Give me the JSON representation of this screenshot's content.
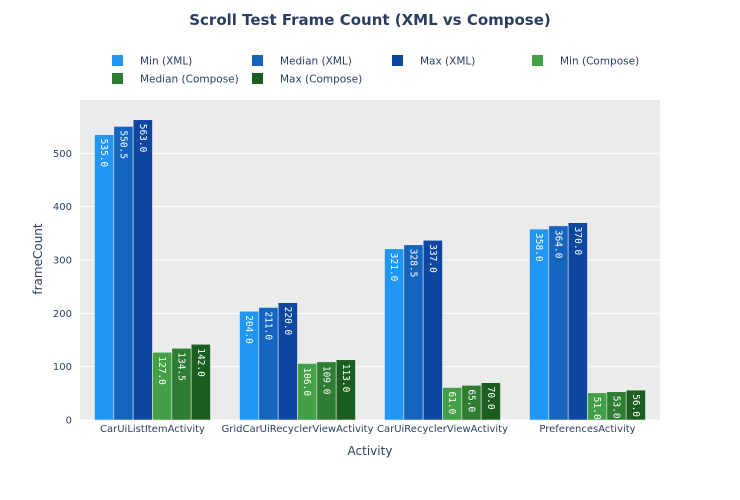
{
  "chart_data": {
    "type": "bar",
    "title": "Scroll Test Frame Count (XML vs Compose)",
    "xlabel": "Activity",
    "ylabel": "frameCount",
    "ylim": [
      0,
      600
    ],
    "yticks": [
      0,
      100,
      200,
      300,
      400,
      500
    ],
    "grid": true,
    "legend_position": "top",
    "categories": [
      "CarUiListItemActivity",
      "GridCarUiRecyclerViewActivity",
      "CarUiRecyclerViewActivity",
      "PreferencesActivity"
    ],
    "series": [
      {
        "name": "Min (XML)",
        "color": "#2196f3",
        "values": [
          535.0,
          204.0,
          321.0,
          358.0
        ],
        "labels": [
          "535.0",
          "204.0",
          "321.0",
          "358.0"
        ]
      },
      {
        "name": "Median (XML)",
        "color": "#1565c0",
        "values": [
          550.5,
          211.0,
          328.5,
          364.0
        ],
        "labels": [
          "550.5",
          "211.0",
          "328.5",
          "364.0"
        ]
      },
      {
        "name": "Max (XML)",
        "color": "#0d47a1",
        "values": [
          563.0,
          220.0,
          337.0,
          370.0
        ],
        "labels": [
          "563.0",
          "220.0",
          "337.0",
          "370.0"
        ]
      },
      {
        "name": "Min (Compose)",
        "color": "#43a047",
        "values": [
          127.0,
          106.0,
          61.0,
          51.0
        ],
        "labels": [
          "127.0",
          "106.0",
          "61.0",
          "51.0"
        ]
      },
      {
        "name": "Median (Compose)",
        "color": "#2e7d32",
        "values": [
          134.5,
          109.0,
          65.0,
          53.0
        ],
        "labels": [
          "134.5",
          "109.0",
          "65.0",
          "53.0"
        ]
      },
      {
        "name": "Max (Compose)",
        "color": "#1b5e20",
        "values": [
          142.0,
          113.0,
          70.0,
          56.0
        ],
        "labels": [
          "142.0",
          "113.0",
          "70.0",
          "56.0"
        ]
      }
    ]
  }
}
